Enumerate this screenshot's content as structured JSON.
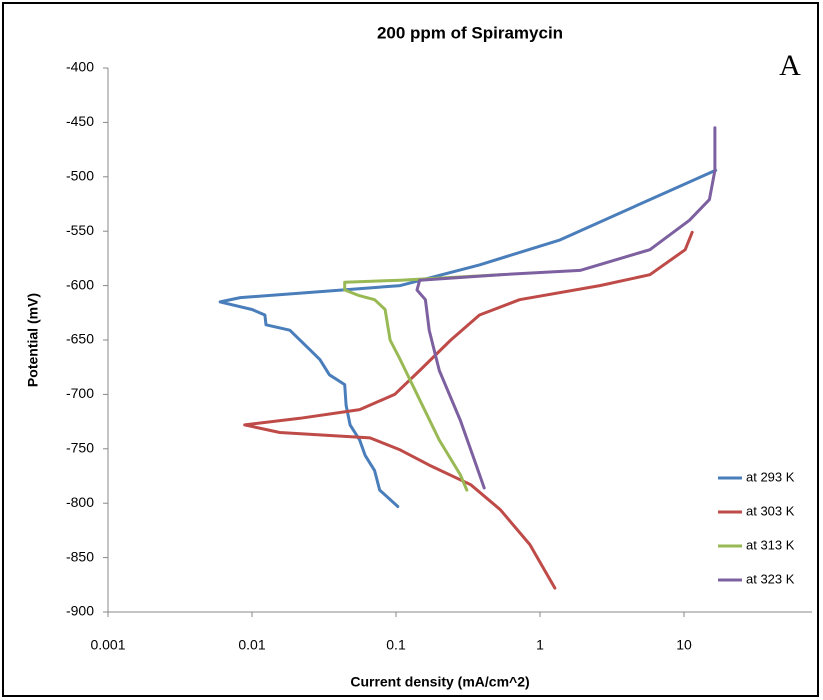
{
  "chart_data": {
    "type": "line",
    "title": "200 ppm of Spiramycin",
    "annotation": "A",
    "x_label": "Current density (mA/cm^2)",
    "y_label": "Potential (mV)",
    "xscale": "log",
    "xlim": [
      0.001,
      100
    ],
    "xticks": [
      0.001,
      0.01,
      0.1,
      1,
      10
    ],
    "ylim": [
      -900,
      -400
    ],
    "yticks": [
      -900,
      -850,
      -800,
      -750,
      -700,
      -650,
      -600,
      -550,
      -500,
      -450,
      -400
    ],
    "grid": false,
    "legend": "lower right",
    "series": [
      {
        "name": "at 293 K",
        "color": "#4a7ebb",
        "x": [
          16.6,
          5.8,
          1.38,
          0.38,
          0.107,
          0.0083,
          0.006,
          0.01,
          0.0123,
          0.0125,
          0.0183,
          0.0253,
          0.0296,
          0.0345,
          0.044,
          0.045,
          0.048,
          0.056,
          0.061,
          0.071,
          0.077,
          0.103
        ],
        "values": [
          -494,
          -521,
          -558,
          -581,
          -600,
          -611,
          -615,
          -622,
          -627,
          -636,
          -641,
          -659,
          -668,
          -682,
          -691,
          -710,
          -728,
          -742,
          -756,
          -770,
          -788,
          -803
        ]
      },
      {
        "name": "at 303 K",
        "color": "#be4b48",
        "x": [
          11.4,
          10.2,
          5.8,
          2.6,
          0.72,
          0.38,
          0.24,
          0.146,
          0.098,
          0.056,
          0.0215,
          0.0089,
          0.0156,
          0.066,
          0.107,
          0.17,
          0.33,
          0.53,
          0.85,
          1.27
        ],
        "values": [
          -551,
          -567,
          -590,
          -600,
          -613,
          -627,
          -650,
          -678,
          -700,
          -714,
          -722,
          -728,
          -735,
          -740,
          -751,
          -765,
          -783,
          -806,
          -838,
          -878
        ]
      },
      {
        "name": "at 313 K",
        "color": "#98b954",
        "x": [
          0.53,
          0.107,
          0.044,
          0.044,
          0.055,
          0.071,
          0.084,
          0.091,
          0.107,
          0.146,
          0.2,
          0.28,
          0.31
        ],
        "values": [
          -590,
          -595,
          -597,
          -604,
          -609,
          -613,
          -622,
          -650,
          -668,
          -705,
          -742,
          -774,
          -788
        ]
      },
      {
        "name": "at 323 K",
        "color": "#7d60a0",
        "x": [
          16.4,
          16.4,
          15,
          10.9,
          5.8,
          1.9,
          0.53,
          0.146,
          0.14,
          0.16,
          0.17,
          0.2,
          0.28,
          0.35,
          0.41
        ],
        "values": [
          -455,
          -494,
          -521,
          -540,
          -567,
          -586,
          -590,
          -595,
          -604,
          -613,
          -641,
          -678,
          -724,
          -760,
          -786
        ]
      }
    ]
  }
}
